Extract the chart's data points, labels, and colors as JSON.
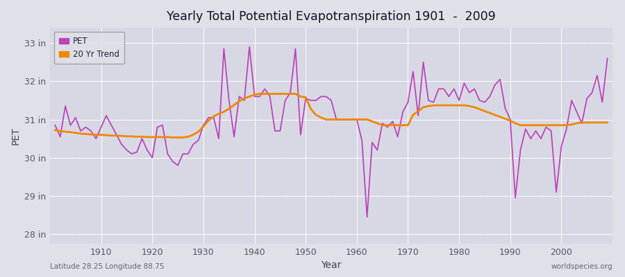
{
  "title": "Yearly Total Potential Evapotranspiration 1901  -  2009",
  "xlabel": "Year",
  "ylabel": "PET",
  "bg_color": "#e0e0e8",
  "plot_bg_color": "#d8d8e4",
  "grid_color": "#c8c8d8",
  "pet_color": "#bb44bb",
  "trend_color": "#ee8800",
  "pet_label": "PET",
  "trend_label": "20 Yr Trend",
  "footer_left": "Latitude 28.25 Longitude 88.75",
  "footer_right": "worldspecies.org",
  "ylim": [
    27.75,
    33.4
  ],
  "yticks": [
    28,
    29,
    30,
    31,
    32,
    33
  ],
  "ytick_labels": [
    "28 in",
    "29 in",
    "30 in",
    "31 in",
    "32 in",
    "33 in"
  ],
  "xlim": [
    1900,
    2010
  ],
  "xticks": [
    1910,
    1920,
    1930,
    1940,
    1950,
    1960,
    1970,
    1980,
    1990,
    2000
  ],
  "years": [
    1901,
    1902,
    1903,
    1904,
    1905,
    1906,
    1907,
    1908,
    1909,
    1910,
    1911,
    1912,
    1913,
    1914,
    1915,
    1916,
    1917,
    1918,
    1919,
    1920,
    1921,
    1922,
    1923,
    1924,
    1925,
    1926,
    1927,
    1928,
    1929,
    1930,
    1931,
    1932,
    1933,
    1934,
    1935,
    1936,
    1937,
    1938,
    1939,
    1940,
    1941,
    1942,
    1943,
    1944,
    1945,
    1946,
    1947,
    1948,
    1949,
    1950,
    1951,
    1952,
    1953,
    1954,
    1955,
    1956,
    1957,
    1958,
    1959,
    1960,
    1961,
    1962,
    1963,
    1964,
    1965,
    1966,
    1967,
    1968,
    1969,
    1970,
    1971,
    1972,
    1973,
    1974,
    1975,
    1976,
    1977,
    1978,
    1979,
    1980,
    1981,
    1982,
    1983,
    1984,
    1985,
    1986,
    1987,
    1988,
    1989,
    1990,
    1991,
    1992,
    1993,
    1994,
    1995,
    1996,
    1997,
    1998,
    1999,
    2000,
    2001,
    2002,
    2003,
    2004,
    2005,
    2006,
    2007,
    2008,
    2009
  ],
  "pet": [
    30.85,
    30.55,
    31.35,
    30.85,
    31.05,
    30.7,
    30.8,
    30.7,
    30.5,
    30.8,
    31.1,
    30.85,
    30.6,
    30.35,
    30.2,
    30.1,
    30.15,
    30.5,
    30.2,
    30.0,
    30.8,
    30.85,
    30.1,
    29.9,
    29.8,
    30.1,
    30.1,
    30.35,
    30.45,
    30.85,
    31.05,
    31.05,
    30.5,
    32.85,
    31.5,
    30.55,
    31.6,
    31.5,
    32.9,
    31.6,
    31.6,
    31.8,
    31.6,
    30.7,
    30.7,
    31.5,
    31.7,
    32.85,
    30.6,
    31.55,
    31.5,
    31.5,
    31.6,
    31.6,
    31.5,
    31.0,
    31.0,
    31.0,
    31.0,
    31.0,
    30.45,
    28.45,
    30.4,
    30.2,
    30.9,
    30.8,
    30.95,
    30.55,
    31.2,
    31.45,
    32.25,
    31.1,
    32.5,
    31.5,
    31.45,
    31.8,
    31.8,
    31.6,
    31.8,
    31.5,
    31.95,
    31.7,
    31.8,
    31.5,
    31.45,
    31.6,
    31.9,
    32.05,
    31.3,
    31.0,
    28.95,
    30.2,
    30.75,
    30.5,
    30.7,
    30.5,
    30.8,
    30.7,
    29.1,
    30.3,
    30.75,
    31.5,
    31.2,
    30.9,
    31.55,
    31.7,
    32.15,
    31.45,
    32.6
  ],
  "trend": [
    30.72,
    30.7,
    30.68,
    30.67,
    30.65,
    30.63,
    30.62,
    30.61,
    30.6,
    30.6,
    30.59,
    30.58,
    30.58,
    30.57,
    30.56,
    30.56,
    30.55,
    30.55,
    30.54,
    30.54,
    30.54,
    30.54,
    30.54,
    30.53,
    30.53,
    30.53,
    30.55,
    30.6,
    30.68,
    30.82,
    30.97,
    31.08,
    31.15,
    31.2,
    31.28,
    31.38,
    31.48,
    31.55,
    31.6,
    31.65,
    31.67,
    31.67,
    31.67,
    31.67,
    31.67,
    31.67,
    31.67,
    31.67,
    31.6,
    31.58,
    31.28,
    31.12,
    31.05,
    31.0,
    31.0,
    31.0,
    31.0,
    31.0,
    31.0,
    31.0,
    31.0,
    31.0,
    30.95,
    30.9,
    30.85,
    30.85,
    30.85,
    30.85,
    30.85,
    30.85,
    31.12,
    31.22,
    31.32,
    31.35,
    31.37,
    31.37,
    31.37,
    31.37,
    31.37,
    31.37,
    31.37,
    31.35,
    31.32,
    31.27,
    31.22,
    31.17,
    31.12,
    31.07,
    31.02,
    30.97,
    30.9,
    30.85,
    30.85,
    30.85,
    30.85,
    30.85,
    30.85,
    30.85,
    30.85,
    30.85,
    30.85,
    30.87,
    30.9,
    30.92,
    30.92,
    30.92,
    30.92,
    30.92,
    30.92
  ]
}
